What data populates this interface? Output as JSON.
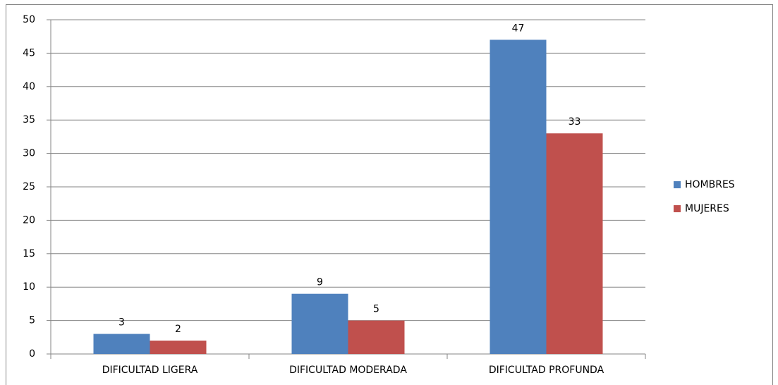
{
  "chart_data": {
    "type": "bar",
    "categories": [
      "DIFICULTAD LIGERA",
      "DIFICULTAD MODERADA",
      "DIFICULTAD PROFUNDA"
    ],
    "series": [
      {
        "name": "HOMBRES",
        "color": "#4f81bd",
        "values": [
          3,
          9,
          47
        ]
      },
      {
        "name": "MUJERES",
        "color": "#c0504d",
        "values": [
          2,
          5,
          33
        ]
      }
    ],
    "ylim": [
      0,
      50
    ],
    "yticks": [
      0,
      5,
      10,
      15,
      20,
      25,
      30,
      35,
      40,
      45,
      50
    ],
    "grid": true,
    "legend": "right"
  }
}
